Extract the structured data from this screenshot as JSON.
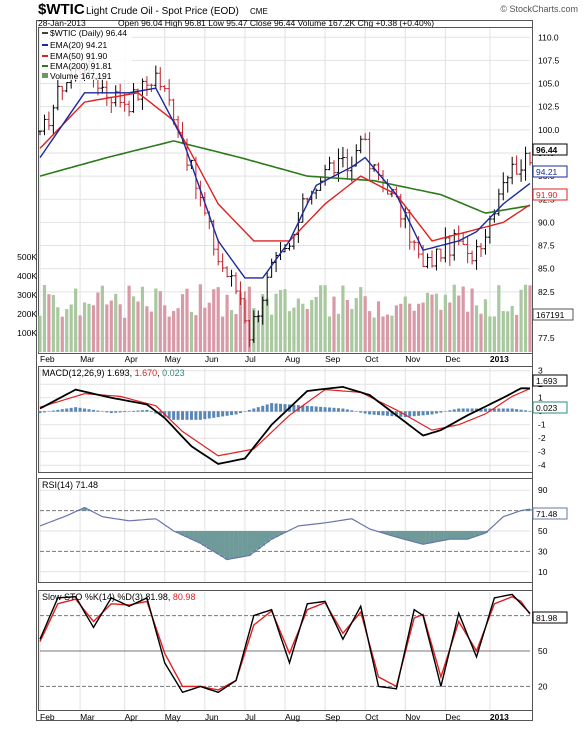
{
  "header": {
    "symbol": "$WTIC",
    "name": "Light Crude Oil - Spot Price (EOD)",
    "exchange": "CME",
    "watermark": "© StockCharts.com",
    "date": "28-Jan-2013",
    "ohlc": "Open 96.04  High 96.81  Low 95.47  Close 96.44  Volume 167.2K  Chg +0.38 (+0.40%)",
    "chg_arrow": "▲"
  },
  "legend": {
    "price": "$WTIC (Daily) 96.44",
    "ema20": "EMA(20) 94.21",
    "ema50": "EMA(50) 91.90",
    "ema200": "EMA(200) 91.81",
    "volume": "Volume 167,191"
  },
  "tags": {
    "price": "96.44",
    "ema20": "94.21",
    "ema50": "91.90",
    "volume": "167191",
    "macd": "1.693",
    "hist": "0.023",
    "rsi": "71.48",
    "sto": "81.98"
  },
  "macd_legend": {
    "label": "MACD(12,26,9)",
    "macd": "1.693",
    "signal": "1.670",
    "hist": "0.023"
  },
  "rsi_legend": {
    "label": "RSI(14) 71.48"
  },
  "sto_legend": {
    "label": "Slow STO %K(14) %D(3)",
    "k": "81.98",
    "d": "80.98"
  },
  "colors": {
    "price": "#000000",
    "ema20": "#1a2a9c",
    "ema50": "#e02020",
    "ema200": "#2c7a1c",
    "vol_up": "#a9c8a0",
    "vol_down": "#d99aa8",
    "hist": "#5a86b4",
    "rsi_fill": "#6e9a9a",
    "macd": "#000000",
    "signal": "#e02020",
    "rsi": "#6677aa",
    "grid": "#e2e2e2"
  },
  "chart_data": [
    {
      "type": "line",
      "title": "$WTIC Light Crude Oil - Spot Price (EOD)",
      "x_ticks": [
        "Feb",
        "Mar",
        "Apr",
        "May",
        "Jun",
        "Jul",
        "Aug",
        "Sep",
        "Oct",
        "Nov",
        "Dec",
        "2013"
      ],
      "price_ylim": [
        76,
        111
      ],
      "price_ticks": [
        110.0,
        107.5,
        105.0,
        102.5,
        100.0,
        97.5,
        95.0,
        92.5,
        90.0,
        87.5,
        85.0,
        82.5,
        77.5
      ],
      "volume_ticks": [
        "500K",
        "400K",
        "300K",
        "200K",
        "100K"
      ],
      "volume_max": 600000,
      "series_keypoints": {
        "price": [
          [
            0,
            99
          ],
          [
            5,
            105
          ],
          [
            10,
            107
          ],
          [
            15,
            104
          ],
          [
            20,
            103
          ],
          [
            26,
            106
          ],
          [
            30,
            102
          ],
          [
            35,
            94
          ],
          [
            40,
            86
          ],
          [
            45,
            82
          ],
          [
            47,
            78
          ],
          [
            52,
            85
          ],
          [
            56,
            87
          ],
          [
            60,
            93
          ],
          [
            65,
            96
          ],
          [
            70,
            96
          ],
          [
            72,
            100
          ],
          [
            74,
            96
          ],
          [
            78,
            94
          ],
          [
            82,
            90
          ],
          [
            86,
            85
          ],
          [
            90,
            87
          ],
          [
            94,
            88
          ],
          [
            96,
            86
          ],
          [
            100,
            89
          ],
          [
            104,
            95
          ],
          [
            108,
            96.5
          ],
          [
            110,
            96.44
          ]
        ],
        "ema20": [
          [
            0,
            97
          ],
          [
            10,
            104
          ],
          [
            20,
            104
          ],
          [
            26,
            104.5
          ],
          [
            32,
            99
          ],
          [
            40,
            88
          ],
          [
            46,
            84
          ],
          [
            50,
            84
          ],
          [
            56,
            88
          ],
          [
            62,
            94
          ],
          [
            70,
            96
          ],
          [
            73,
            97
          ],
          [
            80,
            93
          ],
          [
            86,
            87
          ],
          [
            94,
            88
          ],
          [
            98,
            89
          ],
          [
            104,
            92
          ],
          [
            110,
            94.21
          ]
        ],
        "ema50": [
          [
            0,
            98
          ],
          [
            10,
            103
          ],
          [
            22,
            104
          ],
          [
            30,
            101
          ],
          [
            40,
            92
          ],
          [
            48,
            88
          ],
          [
            56,
            88
          ],
          [
            64,
            92
          ],
          [
            72,
            95
          ],
          [
            80,
            93
          ],
          [
            88,
            88
          ],
          [
            96,
            89
          ],
          [
            104,
            90
          ],
          [
            110,
            91.9
          ]
        ],
        "ema200": [
          [
            0,
            95
          ],
          [
            15,
            97
          ],
          [
            30,
            98.8
          ],
          [
            45,
            97
          ],
          [
            60,
            95
          ],
          [
            75,
            94.5
          ],
          [
            90,
            93
          ],
          [
            100,
            91
          ],
          [
            110,
            91.81
          ]
        ]
      }
    },
    {
      "type": "line",
      "title": "MACD(12,26,9)",
      "ylim": [
        -4.5,
        3.2
      ],
      "y_ticks": [
        "3",
        "2",
        "1",
        "0",
        "-1",
        "-2",
        "-3",
        "-4"
      ],
      "series_keypoints": {
        "macd": [
          [
            0,
            0.2
          ],
          [
            8,
            1.6
          ],
          [
            16,
            1.0
          ],
          [
            24,
            0.5
          ],
          [
            28,
            -0.5
          ],
          [
            34,
            -2.6
          ],
          [
            40,
            -3.9
          ],
          [
            46,
            -3.5
          ],
          [
            52,
            -1.0
          ],
          [
            60,
            1.5
          ],
          [
            68,
            1.8
          ],
          [
            74,
            1.2
          ],
          [
            80,
            -0.3
          ],
          [
            86,
            -1.8
          ],
          [
            90,
            -1.4
          ],
          [
            96,
            -0.3
          ],
          [
            104,
            1.0
          ],
          [
            108,
            1.7
          ],
          [
            110,
            1.693
          ]
        ],
        "signal": [
          [
            0,
            0.3
          ],
          [
            10,
            1.3
          ],
          [
            18,
            1.1
          ],
          [
            26,
            0.4
          ],
          [
            32,
            -1.5
          ],
          [
            40,
            -3.3
          ],
          [
            48,
            -2.8
          ],
          [
            56,
            -0.3
          ],
          [
            64,
            1.6
          ],
          [
            72,
            1.4
          ],
          [
            80,
            0.1
          ],
          [
            88,
            -1.4
          ],
          [
            94,
            -1.0
          ],
          [
            100,
            -0.2
          ],
          [
            106,
            1.1
          ],
          [
            110,
            1.67
          ]
        ],
        "histogram": [
          [
            0,
            -0.1
          ],
          [
            8,
            0.3
          ],
          [
            16,
            -0.1
          ],
          [
            24,
            0.1
          ],
          [
            30,
            -0.6
          ],
          [
            36,
            -0.6
          ],
          [
            44,
            -0.2
          ],
          [
            52,
            0.6
          ],
          [
            60,
            0.4
          ],
          [
            68,
            0.2
          ],
          [
            74,
            -0.2
          ],
          [
            82,
            -0.4
          ],
          [
            88,
            -0.2
          ],
          [
            94,
            0.2
          ],
          [
            100,
            0.2
          ],
          [
            106,
            0.2
          ],
          [
            110,
            0.023
          ]
        ]
      }
    },
    {
      "type": "line",
      "title": "RSI(14)",
      "ylim": [
        0,
        100
      ],
      "y_ticks": [
        90,
        70,
        50,
        30,
        10
      ],
      "series_keypoints": {
        "rsi": [
          [
            0,
            55
          ],
          [
            6,
            65
          ],
          [
            10,
            73
          ],
          [
            14,
            64
          ],
          [
            20,
            60
          ],
          [
            26,
            62
          ],
          [
            30,
            50
          ],
          [
            36,
            38
          ],
          [
            42,
            22
          ],
          [
            47,
            26
          ],
          [
            52,
            42
          ],
          [
            58,
            55
          ],
          [
            64,
            58
          ],
          [
            70,
            62
          ],
          [
            74,
            52
          ],
          [
            80,
            44
          ],
          [
            86,
            37
          ],
          [
            92,
            42
          ],
          [
            96,
            42
          ],
          [
            100,
            48
          ],
          [
            104,
            64
          ],
          [
            108,
            70
          ],
          [
            110,
            71.48
          ]
        ]
      }
    },
    {
      "type": "line",
      "title": "Slow STO %K(14) %D(3)",
      "ylim": [
        0,
        100
      ],
      "y_ticks": [
        80,
        50,
        20
      ],
      "series_keypoints": {
        "k": [
          [
            0,
            60
          ],
          [
            4,
            95
          ],
          [
            8,
            96
          ],
          [
            12,
            70
          ],
          [
            16,
            95
          ],
          [
            20,
            88
          ],
          [
            24,
            95
          ],
          [
            28,
            40
          ],
          [
            32,
            15
          ],
          [
            36,
            20
          ],
          [
            40,
            15
          ],
          [
            44,
            25
          ],
          [
            48,
            80
          ],
          [
            52,
            85
          ],
          [
            56,
            40
          ],
          [
            60,
            90
          ],
          [
            64,
            92
          ],
          [
            68,
            60
          ],
          [
            72,
            88
          ],
          [
            76,
            20
          ],
          [
            80,
            18
          ],
          [
            84,
            85
          ],
          [
            86,
            80
          ],
          [
            90,
            20
          ],
          [
            94,
            82
          ],
          [
            98,
            45
          ],
          [
            102,
            95
          ],
          [
            106,
            98
          ],
          [
            108,
            90
          ],
          [
            110,
            81.98
          ]
        ],
        "d": [
          [
            0,
            58
          ],
          [
            4,
            90
          ],
          [
            8,
            94
          ],
          [
            12,
            75
          ],
          [
            16,
            90
          ],
          [
            20,
            89
          ],
          [
            24,
            92
          ],
          [
            28,
            48
          ],
          [
            32,
            20
          ],
          [
            36,
            20
          ],
          [
            40,
            17
          ],
          [
            44,
            25
          ],
          [
            48,
            72
          ],
          [
            52,
            84
          ],
          [
            56,
            48
          ],
          [
            60,
            85
          ],
          [
            64,
            91
          ],
          [
            68,
            65
          ],
          [
            72,
            83
          ],
          [
            76,
            28
          ],
          [
            80,
            20
          ],
          [
            84,
            78
          ],
          [
            86,
            81
          ],
          [
            90,
            28
          ],
          [
            94,
            75
          ],
          [
            98,
            50
          ],
          [
            102,
            90
          ],
          [
            106,
            96
          ],
          [
            108,
            92
          ],
          [
            110,
            80.98
          ]
        ]
      }
    }
  ]
}
